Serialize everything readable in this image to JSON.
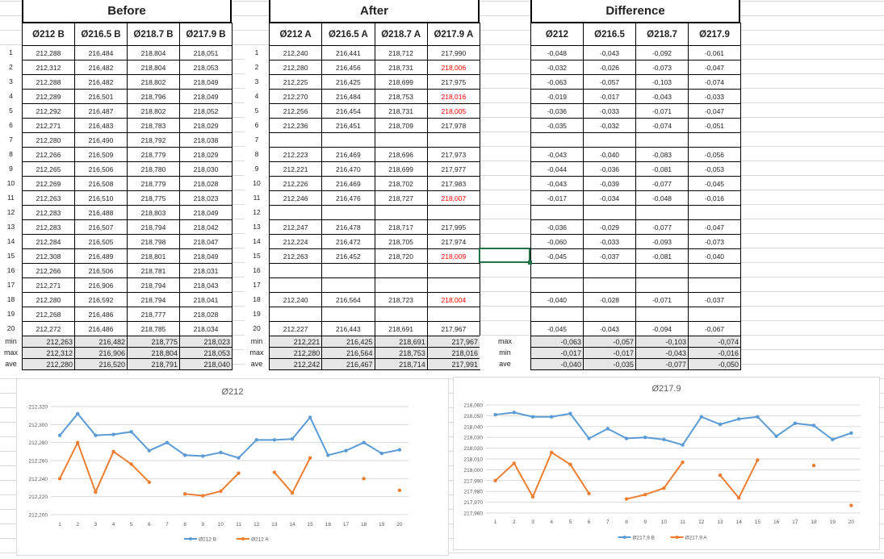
{
  "before": {
    "title": "Before",
    "headers": [
      "Ø212 B",
      "Ø216.5 B",
      "Ø218.7 B",
      "Ø217.9 B"
    ],
    "row_labels": [
      "1",
      "2",
      "3",
      "4",
      "5",
      "6",
      "7",
      "8",
      "9",
      "10",
      "11",
      "12",
      "13",
      "14",
      "15",
      "16",
      "17",
      "18",
      "19",
      "20"
    ],
    "rows": [
      [
        "212,288",
        "216,484",
        "218,804",
        "218,051"
      ],
      [
        "212,312",
        "216,482",
        "218,804",
        "218,053"
      ],
      [
        "212,288",
        "216,482",
        "218,802",
        "218,049"
      ],
      [
        "212,289",
        "216,501",
        "218,796",
        "218,049"
      ],
      [
        "212,292",
        "216,487",
        "218,802",
        "218,052"
      ],
      [
        "212,271",
        "216,483",
        "218,783",
        "218,029"
      ],
      [
        "212,280",
        "216,490",
        "218,792",
        "218,038"
      ],
      [
        "212,266",
        "216,509",
        "218,779",
        "218,029"
      ],
      [
        "212,265",
        "216,506",
        "218,780",
        "218,030"
      ],
      [
        "212,269",
        "216,508",
        "218,779",
        "218,028"
      ],
      [
        "212,263",
        "216,510",
        "218,775",
        "218,023"
      ],
      [
        "212,283",
        "216,488",
        "218,803",
        "218,049"
      ],
      [
        "212,283",
        "216,507",
        "218,794",
        "218,042"
      ],
      [
        "212,284",
        "216,505",
        "218,798",
        "218,047"
      ],
      [
        "212,308",
        "216,489",
        "218,801",
        "218,049"
      ],
      [
        "212,266",
        "216,506",
        "218,781",
        "218,031"
      ],
      [
        "212,271",
        "216,906",
        "218,794",
        "218,043"
      ],
      [
        "212,280",
        "216,592",
        "218,794",
        "218,041"
      ],
      [
        "212,268",
        "216,486",
        "218,777",
        "218,028"
      ],
      [
        "212,272",
        "216,486",
        "218,785",
        "218,034"
      ]
    ],
    "summary_labels": [
      "min",
      "max",
      "ave"
    ],
    "summary": [
      [
        "212,263",
        "216,482",
        "218,775",
        "218,023"
      ],
      [
        "212,312",
        "216,906",
        "218,804",
        "218,053"
      ],
      [
        "212,280",
        "216,520",
        "218,791",
        "218,040"
      ]
    ]
  },
  "after": {
    "title": "After",
    "headers": [
      "Ø212 A",
      "Ø216.5 A",
      "Ø218.7 A",
      "Ø217.9 A"
    ],
    "row_labels": [
      "1",
      "2",
      "3",
      "4",
      "5",
      "6",
      "7",
      "8",
      "9",
      "10",
      "11",
      "12",
      "13",
      "14",
      "15",
      "16",
      "17",
      "18",
      "19",
      "20"
    ],
    "rows": [
      [
        "212,240",
        "216,441",
        "218,712",
        "217,990"
      ],
      [
        "212,280",
        "216,456",
        "218,731",
        "218,006"
      ],
      [
        "212,225",
        "216,425",
        "218,699",
        "217,975"
      ],
      [
        "212,270",
        "216,484",
        "218,753",
        "218,016"
      ],
      [
        "212,256",
        "216,454",
        "218,731",
        "218,005"
      ],
      [
        "212,236",
        "216,451",
        "218,709",
        "217,978"
      ],
      [
        null,
        null,
        null,
        null
      ],
      [
        "212,223",
        "216,469",
        "218,696",
        "217,973"
      ],
      [
        "212,221",
        "216,470",
        "218,699",
        "217,977"
      ],
      [
        "212,226",
        "216,469",
        "218,702",
        "217,983"
      ],
      [
        "212,246",
        "216,476",
        "218,727",
        "218,007"
      ],
      [
        null,
        null,
        null,
        null
      ],
      [
        "212,247",
        "216,478",
        "218,717",
        "217,995"
      ],
      [
        "212,224",
        "216,472",
        "218,705",
        "217,974"
      ],
      [
        "212,263",
        "216,452",
        "218,720",
        "218,009"
      ],
      [
        null,
        null,
        null,
        null
      ],
      [
        null,
        null,
        null,
        null
      ],
      [
        "212,240",
        "216,564",
        "218,723",
        "218,004"
      ],
      [
        null,
        null,
        null,
        null
      ],
      [
        "212,227",
        "216,443",
        "218,691",
        "217,967"
      ]
    ],
    "highlight_color": "#ff0000",
    "highlight_rows_last_col": [
      2,
      4,
      5,
      11,
      15,
      18
    ],
    "summary_labels": [
      "min",
      "max",
      "ave"
    ],
    "summary": [
      [
        "212,221",
        "216,425",
        "218,691",
        "217,967"
      ],
      [
        "212,280",
        "216,564",
        "218,753",
        "218,016"
      ],
      [
        "212,242",
        "216,467",
        "218,714",
        "217,991"
      ]
    ]
  },
  "difference": {
    "title": "Difference",
    "headers": [
      "Ø212",
      "Ø216.5",
      "Ø218.7",
      "Ø217.9"
    ],
    "rows": [
      [
        "-0,048",
        "-0,043",
        "-0,092",
        "-0,061"
      ],
      [
        "-0,032",
        "-0,026",
        "-0,073",
        "-0,047"
      ],
      [
        "-0,063",
        "-0,057",
        "-0,103",
        "-0,074"
      ],
      [
        "-0,019",
        "-0,017",
        "-0,043",
        "-0,033"
      ],
      [
        "-0,036",
        "-0,033",
        "-0,071",
        "-0,047"
      ],
      [
        "-0,035",
        "-0,032",
        "-0,074",
        "-0,051"
      ],
      [
        null,
        null,
        null,
        null
      ],
      [
        "-0,043",
        "-0,040",
        "-0,083",
        "-0,056"
      ],
      [
        "-0,044",
        "-0,036",
        "-0,081",
        "-0,053"
      ],
      [
        "-0,043",
        "-0,039",
        "-0,077",
        "-0,045"
      ],
      [
        "-0,017",
        "-0,034",
        "-0,048",
        "-0,016"
      ],
      [
        null,
        null,
        null,
        null
      ],
      [
        "-0,036",
        "-0,029",
        "-0,077",
        "-0,047"
      ],
      [
        "-0,060",
        "-0,033",
        "-0,093",
        "-0,073"
      ],
      [
        "-0,045",
        "-0,037",
        "-0,081",
        "-0,040"
      ],
      [
        null,
        null,
        null,
        null
      ],
      [
        null,
        null,
        null,
        null
      ],
      [
        "-0,040",
        "-0,028",
        "-0,071",
        "-0,037"
      ],
      [
        null,
        null,
        null,
        null
      ],
      [
        "-0,045",
        "-0,043",
        "-0,094",
        "-0,067"
      ]
    ],
    "summary_labels": [
      "max",
      "min",
      "ave"
    ],
    "summary": [
      [
        "-0,063",
        "-0,057",
        "-0,103",
        "-0,074"
      ],
      [
        "-0,017",
        "-0,017",
        "-0,043",
        "-0,016"
      ],
      [
        "-0,040",
        "-0,035",
        "-0,077",
        "-0,050"
      ]
    ]
  },
  "chart_data": [
    {
      "type": "line",
      "title": "Ø212",
      "x": [
        1,
        2,
        3,
        4,
        5,
        6,
        7,
        8,
        9,
        10,
        11,
        12,
        13,
        14,
        15,
        16,
        17,
        18,
        19,
        20
      ],
      "ylim": [
        212.2,
        212.32
      ],
      "yticks": [
        "212,200",
        "212,220",
        "212,240",
        "212,260",
        "212,280",
        "212,300",
        "212,320"
      ],
      "grid": true,
      "legend": "bottom",
      "series": [
        {
          "name": "Ø212 B",
          "color": "#5b9bd5",
          "values": [
            212.288,
            212.312,
            212.288,
            212.289,
            212.292,
            212.271,
            212.28,
            212.266,
            212.265,
            212.269,
            212.263,
            212.283,
            212.283,
            212.284,
            212.308,
            212.266,
            212.271,
            212.28,
            212.268,
            212.272
          ]
        },
        {
          "name": "Ø212 A",
          "color": "#ed7d31",
          "values": [
            212.24,
            212.28,
            212.225,
            212.27,
            212.256,
            212.236,
            null,
            212.223,
            212.221,
            212.226,
            212.246,
            null,
            212.247,
            212.224,
            212.263,
            null,
            null,
            212.24,
            null,
            212.227
          ]
        }
      ]
    },
    {
      "type": "line",
      "title": "Ø217.9",
      "x": [
        1,
        2,
        3,
        4,
        5,
        6,
        7,
        8,
        9,
        10,
        11,
        12,
        13,
        14,
        15,
        16,
        17,
        18,
        19,
        20
      ],
      "ylim": [
        217.96,
        218.06
      ],
      "yticks": [
        "217,960",
        "217,970",
        "217,980",
        "217,990",
        "218,000",
        "218,010",
        "218,020",
        "218,030",
        "218,040",
        "218,050",
        "218,060"
      ],
      "grid": true,
      "legend": "bottom",
      "series": [
        {
          "name": "Ø217.9 B",
          "color": "#5b9bd5",
          "values": [
            218.051,
            218.053,
            218.049,
            218.049,
            218.052,
            218.029,
            218.038,
            218.029,
            218.03,
            218.028,
            218.023,
            218.049,
            218.042,
            218.047,
            218.049,
            218.031,
            218.043,
            218.041,
            218.028,
            218.034
          ]
        },
        {
          "name": "Ø217.9 A",
          "color": "#ed7d31",
          "values": [
            217.99,
            218.006,
            217.975,
            218.016,
            218.005,
            217.978,
            null,
            217.973,
            217.977,
            217.983,
            218.007,
            null,
            217.995,
            217.974,
            218.009,
            null,
            null,
            218.004,
            null,
            217.967
          ]
        }
      ]
    }
  ]
}
